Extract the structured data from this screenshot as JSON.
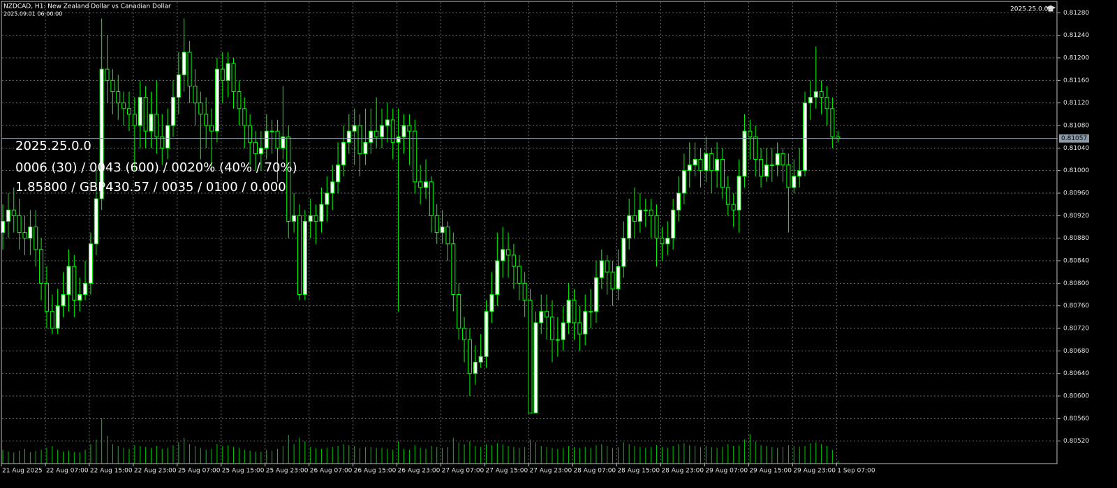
{
  "chart_data": {
    "type": "candlestick",
    "title": "NZDCAD, H1:  New Zealand Dollar vs Canadian Dollar",
    "subtitle": "2025.09.01 06:00:00",
    "version_label": "2025.25.0.0",
    "annotations": [
      "2025.25.0.0",
      "0006 (30) / 0043 (600) / 0020% (40% / 70%)",
      "1.85800 / GBP430.57 / 0035 / 0100 / 0.000"
    ],
    "categories": [
      "21 Aug 2025",
      null,
      null,
      null,
      null,
      null,
      null,
      null,
      "22 Aug 07:00",
      null,
      null,
      null,
      null,
      null,
      null,
      null,
      "22 Aug 15:00",
      null,
      null,
      null,
      null,
      null,
      null,
      null,
      "22 Aug 23:00",
      null,
      null,
      null,
      null,
      null,
      null,
      null,
      "25 Aug 07:00",
      null,
      null,
      null,
      null,
      null,
      null,
      null,
      "25 Aug 15:00",
      null,
      null,
      null,
      null,
      null,
      null,
      null,
      "25 Aug 23:00",
      null,
      null,
      null,
      null,
      null,
      null,
      null,
      "26 Aug 07:00",
      null,
      null,
      null,
      null,
      null,
      null,
      null,
      "26 Aug 15:00",
      null,
      null,
      null,
      null,
      null,
      null,
      null,
      "26 Aug 23:00",
      null,
      null,
      null,
      null,
      null,
      null,
      null,
      "27 Aug 07:00",
      null,
      null,
      null,
      null,
      null,
      null,
      null,
      "27 Aug 15:00",
      null,
      null,
      null,
      null,
      null,
      null,
      null,
      "27 Aug 23:00",
      null,
      null,
      null,
      null,
      null,
      null,
      null,
      "28 Aug 07:00",
      null,
      null,
      null,
      null,
      null,
      null,
      null,
      "28 Aug 15:00",
      null,
      null,
      null,
      null,
      null,
      null,
      null,
      "28 Aug 23:00",
      null,
      null,
      null,
      null,
      null,
      null,
      null,
      "29 Aug 07:00",
      null,
      null,
      null,
      null,
      null,
      null,
      null,
      "29 Aug 15:00",
      null,
      null,
      null,
      null,
      null,
      null,
      null,
      "29 Aug 23:00",
      null,
      null,
      null,
      null,
      null,
      null,
      null,
      "1 Sep 07:00"
    ],
    "open": [
      0.8089,
      0.8091,
      0.8093,
      0.8092,
      0.8089,
      0.8088,
      0.809,
      0.8086,
      0.808,
      0.8075,
      0.8072,
      0.8076,
      0.8078,
      0.8083,
      0.8077,
      0.8078,
      0.808,
      0.8087,
      0.8095,
      0.8118,
      0.8116,
      0.8114,
      0.8112,
      0.8111,
      0.811,
      0.8108,
      0.8113,
      0.8107,
      0.811,
      0.8106,
      0.8104,
      0.8108,
      0.8113,
      0.8117,
      0.8121,
      0.8115,
      0.8112,
      0.811,
      0.8108,
      0.8107,
      0.8118,
      0.8116,
      0.8119,
      0.8114,
      0.8111,
      0.8108,
      0.8105,
      0.8103,
      0.8104,
      0.8107,
      0.8107,
      0.8104,
      0.8106,
      0.8091,
      0.8092,
      0.8078,
      0.8091,
      0.8092,
      0.8091,
      0.8094,
      0.8096,
      0.8098,
      0.8101,
      0.8105,
      0.8107,
      0.8108,
      0.8103,
      0.8105,
      0.8107,
      0.8106,
      0.8108,
      0.8109,
      0.8105,
      0.8106,
      0.8108,
      0.8107,
      0.8098,
      0.8097,
      0.8098,
      0.8092,
      0.8089,
      0.809,
      0.8087,
      0.8078,
      0.8072,
      0.807,
      0.8064,
      0.8066,
      0.8067,
      0.8075,
      0.8078,
      0.8084,
      0.8086,
      0.8085,
      0.8083,
      0.808,
      0.8077,
      0.8057,
      0.8073,
      0.8075,
      0.8074,
      0.807,
      0.807,
      0.8073,
      0.8077,
      0.8073,
      0.8071,
      0.8075,
      0.8075,
      0.8081,
      0.8084,
      0.8082,
      0.8079,
      0.8083,
      0.8088,
      0.8092,
      0.8091,
      0.8093,
      0.8093,
      0.8092,
      0.8088,
      0.8087,
      0.8088,
      0.8093,
      0.8096,
      0.81,
      0.8101,
      0.8102,
      0.81,
      0.8103,
      0.81,
      0.8102,
      0.8097,
      0.8094,
      0.8093,
      0.8099,
      0.8107,
      0.8106,
      0.8102,
      0.8099,
      0.8101,
      0.8101,
      0.8103,
      0.8101,
      0.8097,
      0.8099,
      0.81,
      0.8112,
      0.8113,
      0.8114,
      0.8113,
      0.8111,
      0.8106
    ],
    "high": [
      0.8094,
      0.8096,
      0.8097,
      0.8095,
      0.8092,
      0.8093,
      0.8093,
      0.8088,
      0.8083,
      0.8078,
      0.8079,
      0.8082,
      0.8086,
      0.8085,
      0.8081,
      0.8084,
      0.8089,
      0.81,
      0.8127,
      0.8124,
      0.8118,
      0.8117,
      0.8114,
      0.8114,
      0.8113,
      0.8116,
      0.8115,
      0.8114,
      0.8116,
      0.811,
      0.8111,
      0.8116,
      0.8121,
      0.8127,
      0.8123,
      0.8118,
      0.8114,
      0.8113,
      0.8111,
      0.812,
      0.8121,
      0.8121,
      0.812,
      0.8116,
      0.8113,
      0.811,
      0.8107,
      0.8107,
      0.811,
      0.8109,
      0.8109,
      0.8115,
      0.8108,
      0.8096,
      0.8094,
      0.8093,
      0.8095,
      0.8094,
      0.8097,
      0.8099,
      0.8101,
      0.8105,
      0.8108,
      0.811,
      0.8111,
      0.811,
      0.8111,
      0.8111,
      0.8113,
      0.8111,
      0.8112,
      0.8111,
      0.8111,
      0.811,
      0.811,
      0.8109,
      0.8101,
      0.8102,
      0.8099,
      0.8094,
      0.8093,
      0.8091,
      0.8089,
      0.808,
      0.8074,
      0.8072,
      0.8069,
      0.8071,
      0.8077,
      0.8082,
      0.8089,
      0.809,
      0.8089,
      0.8087,
      0.8085,
      0.8082,
      0.8079,
      0.8075,
      0.8078,
      0.8078,
      0.8077,
      0.8074,
      0.8076,
      0.808,
      0.8079,
      0.8076,
      0.8078,
      0.8079,
      0.8084,
      0.8086,
      0.8085,
      0.8084,
      0.8086,
      0.8091,
      0.8095,
      0.8097,
      0.8096,
      0.8095,
      0.8095,
      0.8094,
      0.809,
      0.8091,
      0.8095,
      0.8099,
      0.8103,
      0.8105,
      0.8105,
      0.8104,
      0.8106,
      0.8104,
      0.8105,
      0.8104,
      0.8099,
      0.8096,
      0.8102,
      0.811,
      0.8109,
      0.8108,
      0.8104,
      0.8104,
      0.8104,
      0.8105,
      0.8104,
      0.8103,
      0.8102,
      0.8104,
      0.8114,
      0.8116,
      0.8122,
      0.8116,
      0.8115,
      0.8113,
      0.8107
    ],
    "low": [
      0.8086,
      0.8088,
      0.8089,
      0.8086,
      0.8085,
      0.8085,
      0.8083,
      0.8077,
      0.8072,
      0.8071,
      0.8071,
      0.8074,
      0.8075,
      0.8074,
      0.8075,
      0.8077,
      0.8078,
      0.8085,
      0.8093,
      0.8112,
      0.811,
      0.8109,
      0.8108,
      0.8107,
      0.81,
      0.8104,
      0.8104,
      0.8104,
      0.8103,
      0.8101,
      0.8102,
      0.8106,
      0.811,
      0.8114,
      0.8112,
      0.8108,
      0.8102,
      0.8104,
      0.81,
      0.8105,
      0.8112,
      0.8113,
      0.8111,
      0.8108,
      0.8104,
      0.8101,
      0.81,
      0.81,
      0.8102,
      0.8103,
      0.8098,
      0.8102,
      0.8088,
      0.8089,
      0.8077,
      0.8077,
      0.8088,
      0.8087,
      0.8089,
      0.8091,
      0.8093,
      0.8096,
      0.8099,
      0.8103,
      0.8101,
      0.8099,
      0.8101,
      0.8103,
      0.8104,
      0.8104,
      0.8105,
      0.8102,
      0.8075,
      0.8103,
      0.8101,
      0.8096,
      0.8094,
      0.8095,
      0.8089,
      0.8087,
      0.8087,
      0.8084,
      0.8075,
      0.807,
      0.8066,
      0.806,
      0.8062,
      0.8065,
      0.8065,
      0.8073,
      0.8076,
      0.8081,
      0.8081,
      0.8079,
      0.8077,
      0.8074,
      0.8057,
      0.8057,
      0.8071,
      0.807,
      0.8066,
      0.8067,
      0.8068,
      0.8071,
      0.807,
      0.8068,
      0.8069,
      0.8072,
      0.8073,
      0.8079,
      0.8078,
      0.8076,
      0.8077,
      0.8081,
      0.8086,
      0.8088,
      0.8089,
      0.809,
      0.8088,
      0.8083,
      0.8084,
      0.8085,
      0.8086,
      0.8091,
      0.8094,
      0.8097,
      0.8099,
      0.8097,
      0.8098,
      0.8096,
      0.8097,
      0.8095,
      0.8092,
      0.809,
      0.8089,
      0.8097,
      0.8102,
      0.8099,
      0.8097,
      0.8098,
      0.8098,
      0.8099,
      0.8098,
      0.8089,
      0.8096,
      0.8097,
      0.8099,
      0.8109,
      0.8111,
      0.811,
      0.8108,
      0.8104,
      0.8105
    ],
    "close": [
      0.8091,
      0.8093,
      0.8092,
      0.8089,
      0.8088,
      0.809,
      0.8086,
      0.808,
      0.8075,
      0.8072,
      0.8076,
      0.8078,
      0.8083,
      0.8077,
      0.8078,
      0.808,
      0.8087,
      0.8095,
      0.8118,
      0.8116,
      0.8114,
      0.8112,
      0.8111,
      0.811,
      0.8108,
      0.8113,
      0.8107,
      0.811,
      0.8106,
      0.8104,
      0.8108,
      0.8113,
      0.8117,
      0.8121,
      0.8115,
      0.8112,
      0.811,
      0.8108,
      0.8107,
      0.8118,
      0.8116,
      0.8119,
      0.8114,
      0.8111,
      0.8108,
      0.8105,
      0.8103,
      0.8104,
      0.8107,
      0.8107,
      0.8104,
      0.8106,
      0.8091,
      0.8092,
      0.8078,
      0.8091,
      0.8092,
      0.8091,
      0.8094,
      0.8096,
      0.8098,
      0.8101,
      0.8105,
      0.8107,
      0.8108,
      0.8103,
      0.8105,
      0.8107,
      0.8106,
      0.8108,
      0.8109,
      0.8105,
      0.8106,
      0.8108,
      0.8107,
      0.8098,
      0.8097,
      0.8098,
      0.8092,
      0.8089,
      0.809,
      0.8087,
      0.8078,
      0.8072,
      0.807,
      0.8064,
      0.8066,
      0.8067,
      0.8075,
      0.8078,
      0.8084,
      0.8086,
      0.8085,
      0.8083,
      0.808,
      0.8077,
      0.8057,
      0.8073,
      0.8075,
      0.8074,
      0.807,
      0.807,
      0.8073,
      0.8077,
      0.8073,
      0.8071,
      0.8075,
      0.8075,
      0.8081,
      0.8084,
      0.8082,
      0.8079,
      0.8083,
      0.8088,
      0.8092,
      0.8091,
      0.8093,
      0.8093,
      0.8092,
      0.8088,
      0.8087,
      0.8088,
      0.8093,
      0.8096,
      0.81,
      0.8101,
      0.8102,
      0.81,
      0.8103,
      0.81,
      0.8102,
      0.8097,
      0.8094,
      0.8093,
      0.8099,
      0.8107,
      0.8106,
      0.8102,
      0.8099,
      0.8101,
      0.8101,
      0.8103,
      0.8101,
      0.8097,
      0.8099,
      0.81,
      0.8112,
      0.8113,
      0.8114,
      0.8113,
      0.8111,
      0.8106,
      0.81057
    ],
    "volume": [
      300,
      260,
      240,
      280,
      320,
      250,
      270,
      300,
      340,
      380,
      300,
      260,
      280,
      250,
      240,
      300,
      420,
      520,
      980,
      600,
      420,
      380,
      340,
      320,
      400,
      380,
      360,
      340,
      380,
      320,
      340,
      400,
      460,
      560,
      420,
      380,
      340,
      300,
      320,
      420,
      380,
      400,
      360,
      340,
      300,
      280,
      260,
      260,
      300,
      280,
      320,
      380,
      620,
      420,
      560,
      480,
      360,
      340,
      320,
      340,
      360,
      380,
      420,
      400,
      380,
      340,
      360,
      360,
      340,
      340,
      320,
      300,
      480,
      320,
      300,
      400,
      340,
      320,
      380,
      360,
      340,
      360,
      560,
      460,
      420,
      480,
      380,
      360,
      420,
      400,
      440,
      420,
      380,
      360,
      340,
      360,
      520,
      460,
      380,
      360,
      340,
      320,
      340,
      380,
      360,
      340,
      360,
      340,
      400,
      420,
      380,
      340,
      360,
      460,
      420,
      380,
      360,
      340,
      360,
      400,
      360,
      340,
      380,
      420,
      440,
      400,
      380,
      360,
      380,
      360,
      340,
      360,
      420,
      380,
      400,
      520,
      640,
      480,
      400,
      380,
      360,
      340,
      360,
      400,
      380,
      360,
      380,
      440,
      460,
      420,
      380,
      300,
      60
    ],
    "ylim": [
      0.8048,
      0.81299
    ],
    "yticks": [
      {
        "value": 0.8052,
        "label": "0.80520"
      },
      {
        "value": 0.8056,
        "label": "0.80560"
      },
      {
        "value": 0.806,
        "label": "0.80600"
      },
      {
        "value": 0.8064,
        "label": "0.80640"
      },
      {
        "value": 0.8068,
        "label": "0.80680"
      },
      {
        "value": 0.8072,
        "label": "0.80720"
      },
      {
        "value": 0.8076,
        "label": "0.80760"
      },
      {
        "value": 0.808,
        "label": "0.80800"
      },
      {
        "value": 0.8084,
        "label": "0.80840"
      },
      {
        "value": 0.8088,
        "label": "0.80880"
      },
      {
        "value": 0.8092,
        "label": "0.80920"
      },
      {
        "value": 0.8096,
        "label": "0.80960"
      },
      {
        "value": 0.81,
        "label": "0.81000"
      },
      {
        "value": 0.8104,
        "label": "0.81040"
      },
      {
        "value": 0.8108,
        "label": "0.81080"
      },
      {
        "value": 0.8112,
        "label": "0.81120"
      },
      {
        "value": 0.8116,
        "label": "0.81160"
      },
      {
        "value": 0.812,
        "label": "0.81200"
      },
      {
        "value": 0.8124,
        "label": "0.81240"
      },
      {
        "value": 0.8128,
        "label": "0.81280"
      }
    ],
    "price_line": {
      "value": 0.81057,
      "label": "0.81057"
    },
    "grid": true,
    "up_color": "#ffffff",
    "down_color": "#000000",
    "wick_color": "#00ff00",
    "volume_color": "#00c800"
  }
}
